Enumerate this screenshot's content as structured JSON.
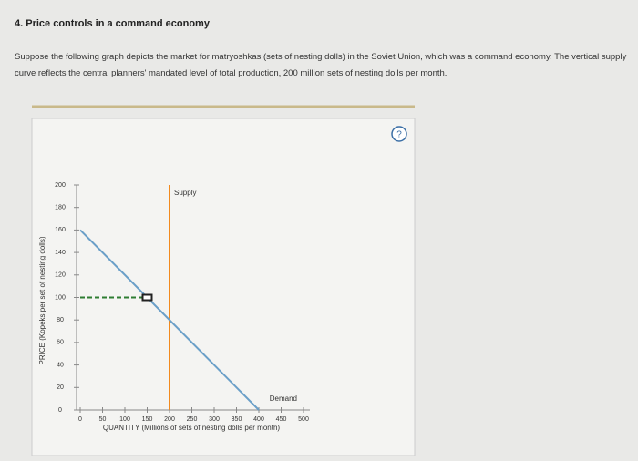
{
  "question": {
    "title": "4. Price controls in a command economy",
    "text": "Suppose the following graph depicts the market for matryoshkas (sets of nesting dolls) in the Soviet Union, which was a command economy. The vertical supply curve reflects the central planners' mandated level of total production, 200 million sets of nesting dolls per month.",
    "help": "?"
  },
  "chart_data": {
    "type": "line",
    "x_label": "QUANTITY (Millions of sets of nesting dolls per month)",
    "y_label": "PRICE (Kopeks per set of nesting dolls)",
    "xlim": [
      0,
      500
    ],
    "ylim": [
      0,
      200
    ],
    "xticks": [
      0,
      50,
      100,
      150,
      200,
      250,
      300,
      350,
      400,
      450,
      500
    ],
    "yticks": [
      0,
      20,
      40,
      60,
      80,
      100,
      120,
      140,
      160,
      180,
      200
    ],
    "series": [
      {
        "name": "Supply",
        "color": "#f28a1e",
        "x": [
          200,
          200
        ],
        "values": [
          0,
          200
        ]
      },
      {
        "name": "Demand",
        "color": "#6a9fc8",
        "x": [
          0,
          150,
          400
        ],
        "values": [
          160,
          100,
          0
        ]
      }
    ],
    "price_control": {
      "color": "#2e7d32",
      "x": [
        0,
        150
      ],
      "values": [
        100,
        100
      ]
    },
    "point": {
      "color": "#222222",
      "x": 150,
      "value": 100
    }
  }
}
